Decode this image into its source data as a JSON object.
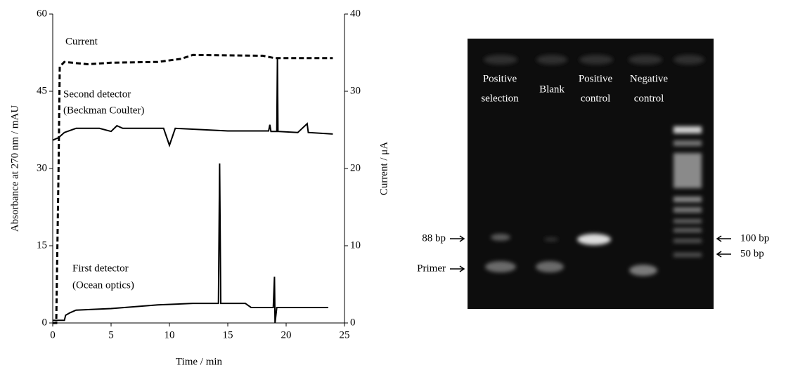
{
  "chart_data": {
    "type": "line",
    "xlabel": "Time / min",
    "ylabel": "Absorbance at 270 nm / mAU",
    "y2label": "Current / μA",
    "xlim": [
      0,
      25
    ],
    "xticks": [
      0,
      5,
      10,
      15,
      20,
      25
    ],
    "ylim": [
      0,
      60
    ],
    "yticks": [
      0,
      15,
      30,
      45,
      60
    ],
    "y2lim": [
      0,
      40
    ],
    "y2ticks": [
      0,
      10,
      20,
      30,
      40
    ],
    "annotations": [
      "Current",
      "Second detector",
      "(Beckman Coulter)",
      "First detector",
      "(Ocean optics)"
    ],
    "series": [
      {
        "name": "Current",
        "color": "#000000",
        "dashed": true,
        "axis": "y2",
        "x": [
          0,
          0.3,
          0.5,
          0.6,
          1,
          3,
          5,
          9,
          11,
          12,
          18,
          19,
          24
        ],
        "values": [
          0,
          0,
          20,
          33.2,
          33.8,
          33.5,
          33.7,
          33.8,
          34.2,
          34.7,
          34.6,
          34.3,
          34.3
        ]
      },
      {
        "name": "Second detector",
        "color": "#000000",
        "dashed": false,
        "x": [
          0,
          0.5,
          1,
          2,
          4,
          5,
          5.5,
          6,
          9.5,
          10,
          10.5,
          15,
          18.5,
          18.6,
          18.7,
          19.2,
          19.25,
          19.3,
          21,
          21.8,
          21.9,
          24
        ],
        "values": [
          35.5,
          36,
          37,
          37.8,
          37.8,
          37.2,
          38.3,
          37.8,
          37.8,
          34.5,
          37.8,
          37.3,
          37.3,
          38.5,
          37.2,
          37.2,
          51.6,
          37.2,
          37,
          38.7,
          37,
          36.7
        ]
      },
      {
        "name": "First detector",
        "color": "#000000",
        "dashed": false,
        "x": [
          0,
          1,
          1.1,
          1.5,
          2,
          5,
          9,
          12,
          14.2,
          14.3,
          14.4,
          16.5,
          17,
          18.9,
          19,
          19.05,
          19.2,
          23.6
        ],
        "values": [
          0.5,
          0.5,
          1.5,
          2,
          2.5,
          2.8,
          3.5,
          3.8,
          3.8,
          31,
          3.8,
          3.8,
          3,
          3,
          9,
          0,
          3,
          3
        ]
      }
    ]
  },
  "gel": {
    "lane_labels": [
      [
        "Positive",
        "selection"
      ],
      [
        "Blank"
      ],
      [
        "Positive",
        "control"
      ],
      [
        "Negative",
        "control"
      ]
    ],
    "markers_left": [
      "88 bp",
      "Primer"
    ],
    "markers_right": [
      "100 bp",
      "50 bp"
    ]
  }
}
